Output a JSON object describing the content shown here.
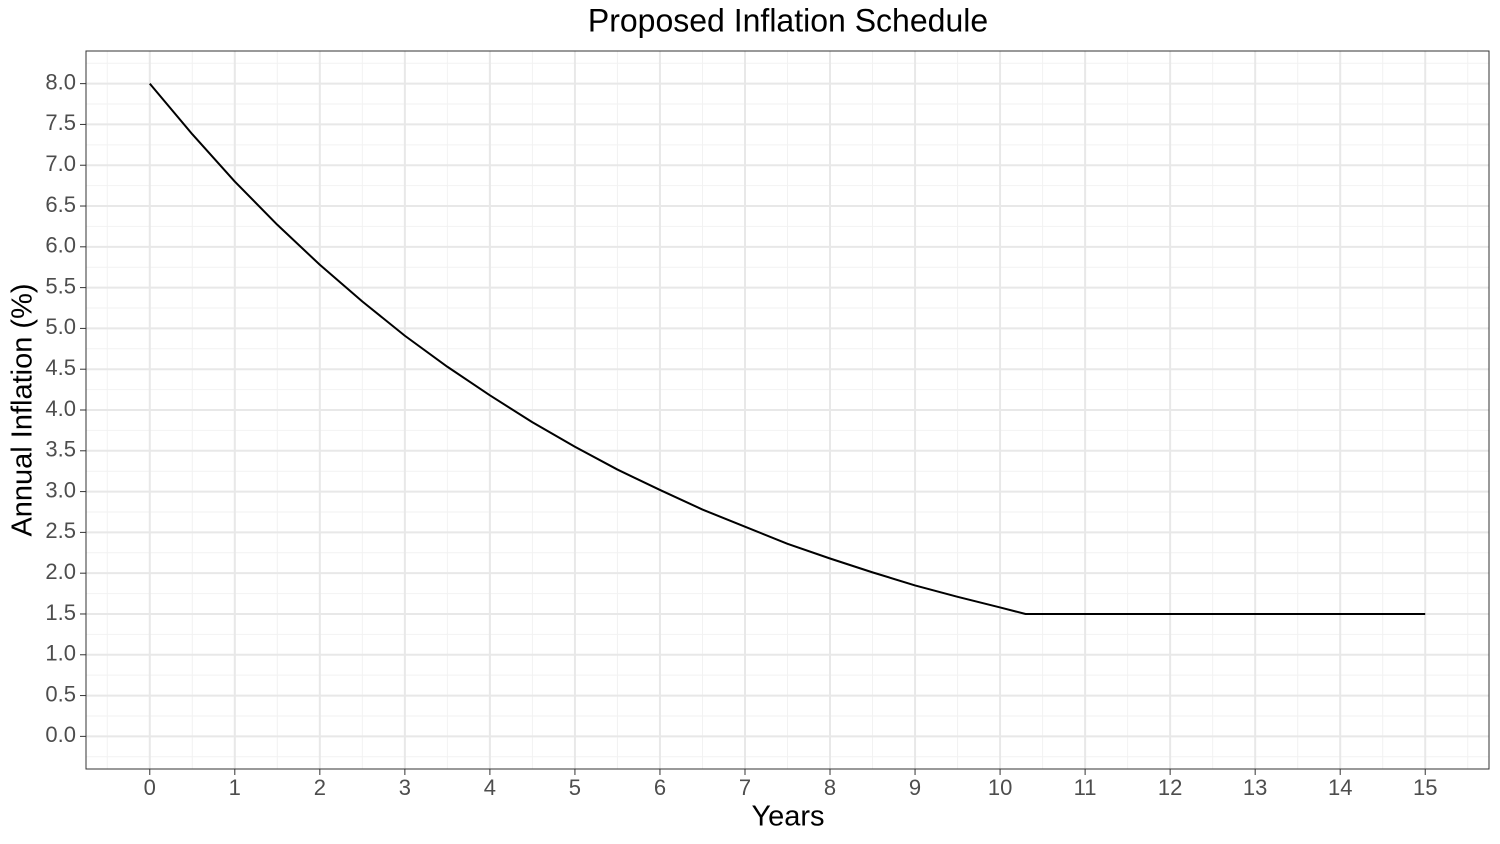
{
  "chart_data": {
    "type": "line",
    "title": "Proposed Inflation Schedule",
    "x_label": "Years",
    "y_label": "Annual Inflation (%)",
    "x": [
      0,
      0.5,
      1,
      1.5,
      2,
      2.5,
      3,
      3.5,
      4,
      4.5,
      5,
      5.5,
      6,
      6.5,
      7,
      7.5,
      8,
      8.5,
      9,
      9.5,
      10,
      10.3,
      15
    ],
    "series": [
      {
        "color": "#000000",
        "values": [
          8,
          7.38,
          6.8,
          6.27,
          5.78,
          5.33,
          4.91,
          4.53,
          4.18,
          3.85,
          3.55,
          3.27,
          3.02,
          2.78,
          2.57,
          2.36,
          2.18,
          2.01,
          1.85,
          1.71,
          1.58,
          1.5,
          1.5
        ]
      }
    ],
    "xlim": [
      -0.75,
      15.75
    ],
    "ylim": [
      -0.4,
      8.4
    ],
    "xticks": [
      0,
      1,
      2,
      3,
      4,
      5,
      6,
      7,
      8,
      9,
      10,
      11,
      12,
      13,
      14,
      15
    ],
    "yticks": [
      {
        "value": 0,
        "label": "0.0"
      },
      0.5,
      {
        "value": 1,
        "label": "1.0"
      },
      1.5,
      {
        "value": 2,
        "label": "2.0"
      },
      2.5,
      {
        "value": 3,
        "label": "3.0"
      },
      3.5,
      {
        "value": 4,
        "label": "4.0"
      },
      4.5,
      {
        "value": 5,
        "label": "5.0"
      },
      5.5,
      {
        "value": 6,
        "label": "6.0"
      },
      6.5,
      {
        "value": 7,
        "label": "7.0"
      },
      7.5,
      {
        "value": 8,
        "label": "8.0"
      }
    ],
    "xminor": [
      -0.5,
      0.5,
      1.5,
      2.5,
      3.5,
      4.5,
      5.5,
      6.5,
      7.5,
      8.5,
      9.5,
      10.5,
      11.5,
      12.5,
      13.5,
      14.5,
      15.5
    ],
    "yminor": [
      -0.25,
      0.25,
      0.75,
      1.25,
      1.75,
      2.25,
      2.75,
      3.25,
      3.75,
      4.25,
      4.75,
      5.25,
      5.75,
      6.25,
      6.75,
      7.25,
      7.75,
      8.25
    ],
    "grid": true
  }
}
